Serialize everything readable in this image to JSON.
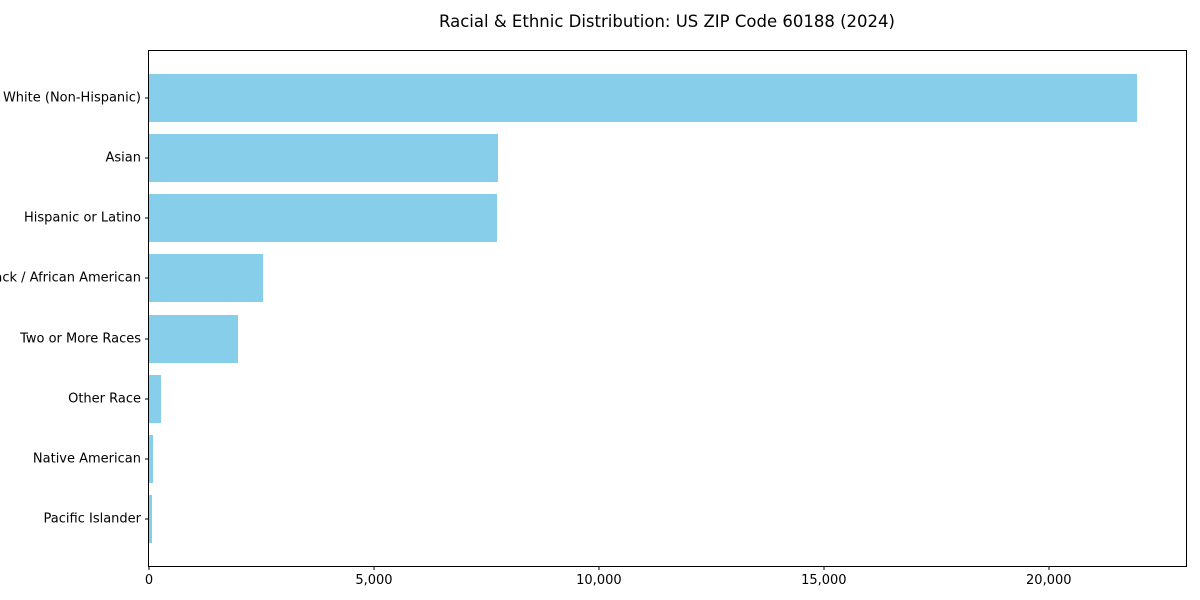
{
  "chart_data": {
    "type": "bar",
    "orientation": "horizontal",
    "title": "Racial & Ethnic Distribution: US ZIP Code 60188 (2024)",
    "xlabel": "",
    "ylabel": "",
    "categories": [
      "White (Non-Hispanic)",
      "Asian",
      "Hispanic or Latino",
      "Black / African American",
      "Two or More Races",
      "Other Race",
      "Native American",
      "Pacific Islander"
    ],
    "values": [
      21950,
      7760,
      7730,
      2530,
      1980,
      270,
      100,
      75
    ],
    "xlim": [
      0,
      23050
    ],
    "xticks": {
      "values": [
        0,
        5000,
        10000,
        15000,
        20000
      ],
      "labels": [
        "0",
        "5,000",
        "10,000",
        "15,000",
        "20,000"
      ]
    },
    "bar_color": "#87CEEB",
    "background_color": "#FFFFFF",
    "spine_color": "#000000",
    "grid": false,
    "legend": "none"
  }
}
